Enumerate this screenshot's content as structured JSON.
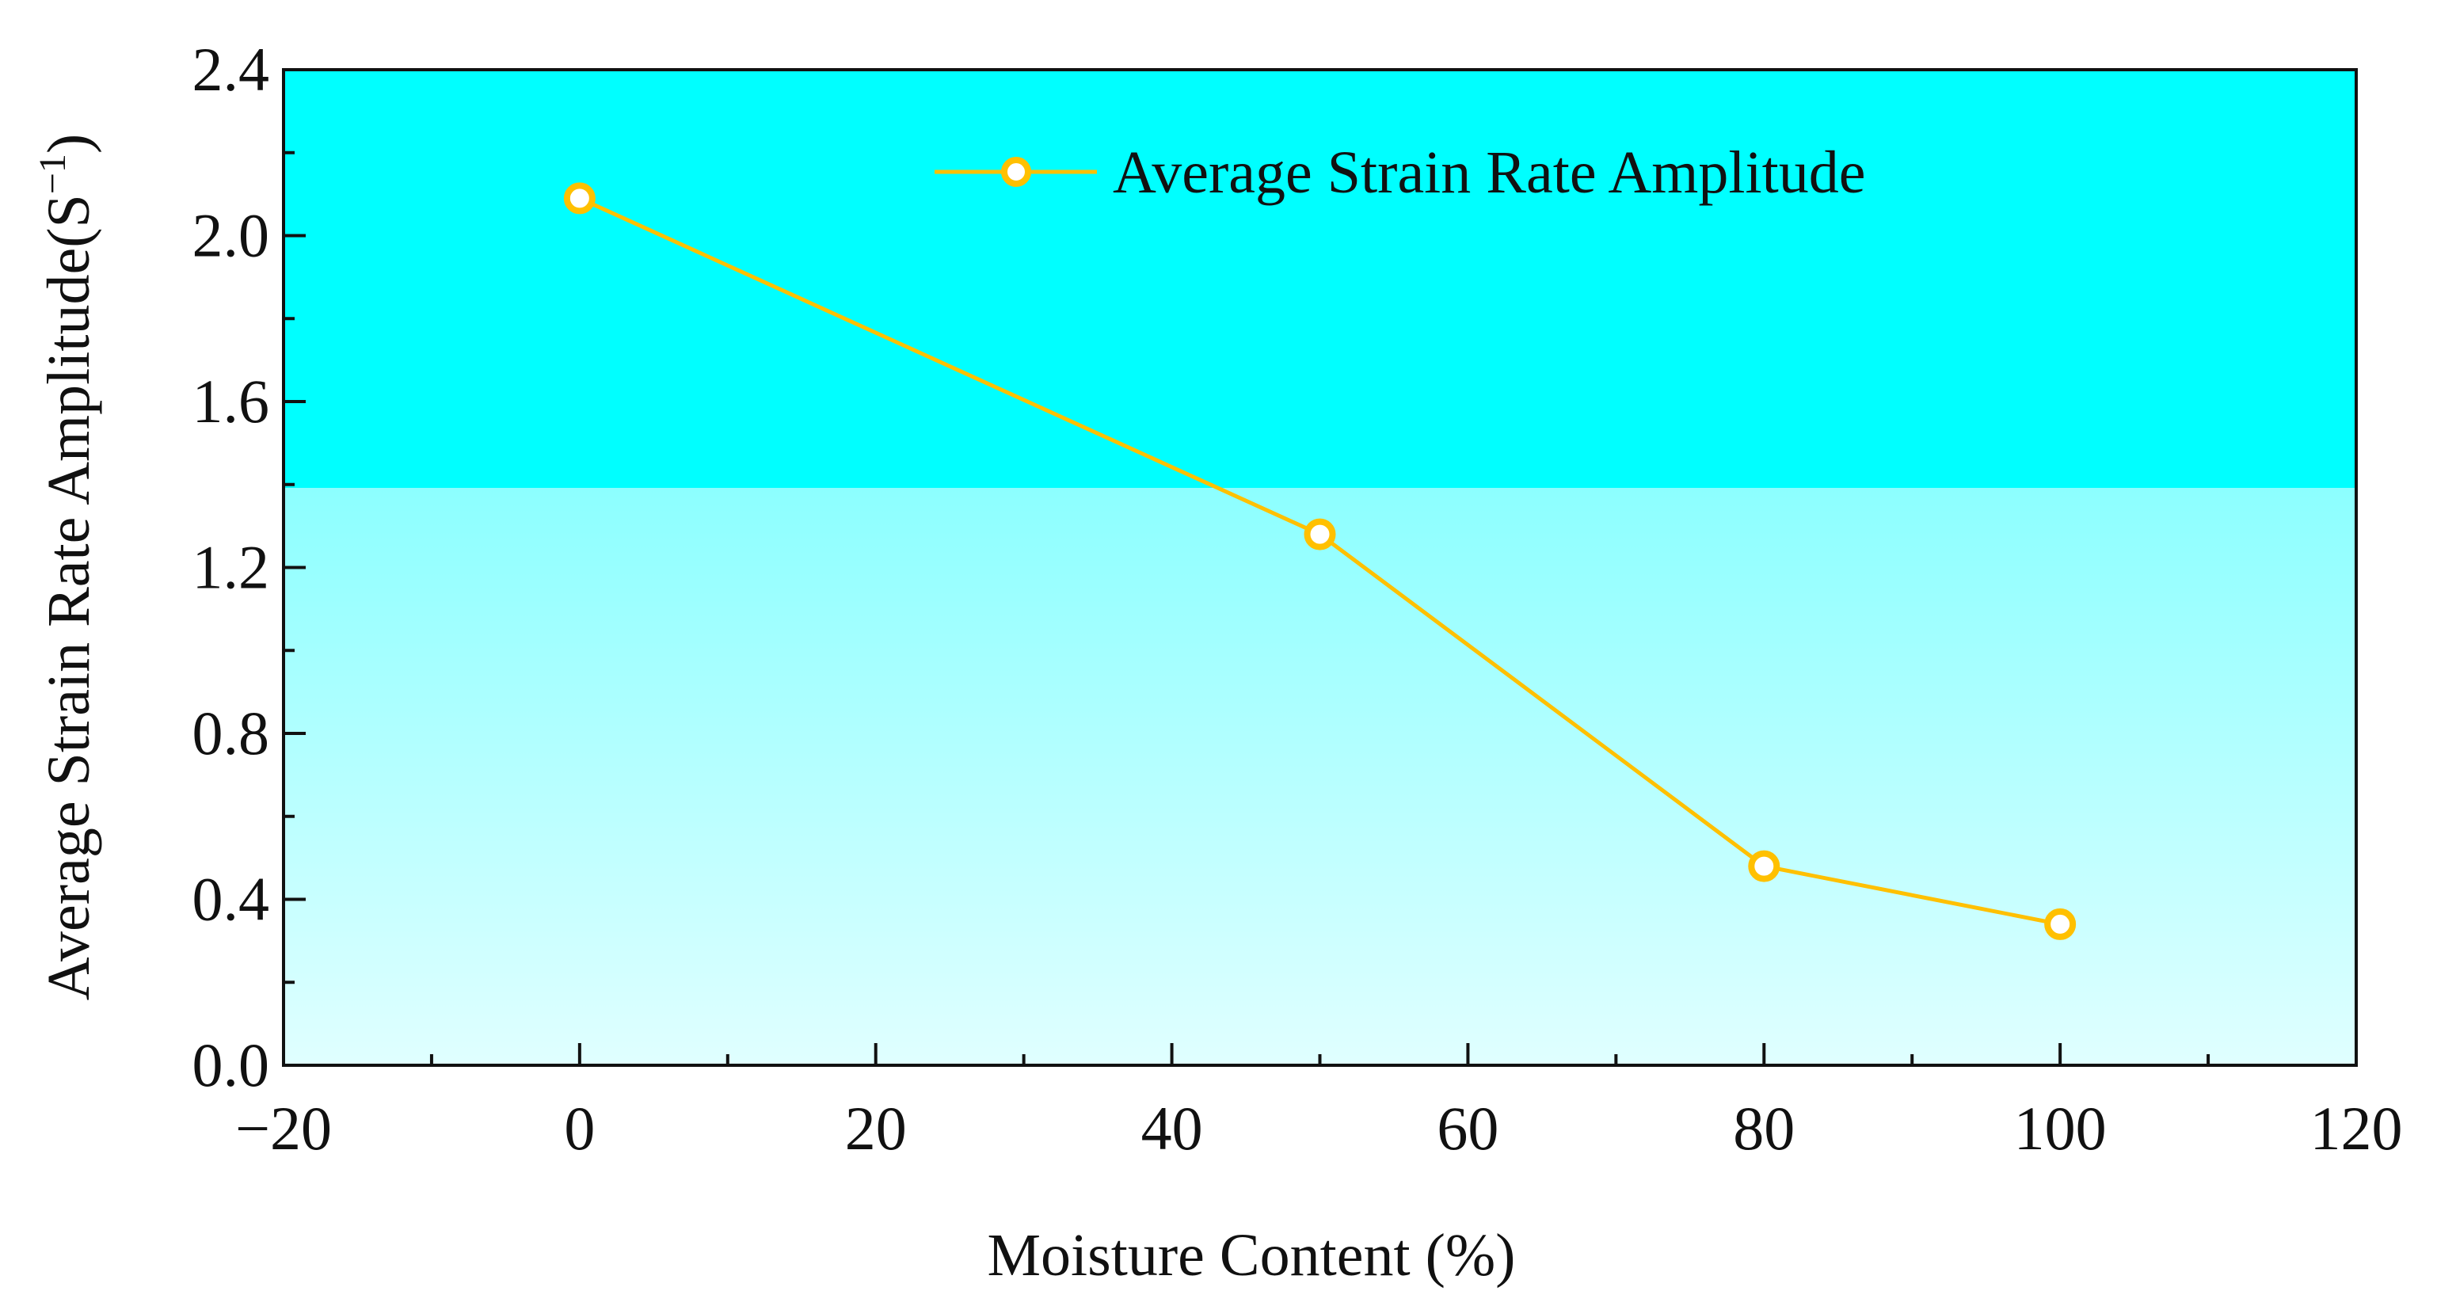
{
  "chart_data": {
    "type": "line",
    "title": "",
    "xlabel": "Moisture Content (%)",
    "ylabel": "Average Strain Rate Amplitude(S",
    "ylabel_sup": "−1",
    "ylabel_close": ")",
    "xlim": [
      -20,
      120
    ],
    "ylim": [
      0.0,
      2.4
    ],
    "xticks": [
      -20,
      0,
      20,
      40,
      60,
      80,
      100,
      120
    ],
    "xtick_labels": [
      "−20",
      "0",
      "20",
      "40",
      "60",
      "80",
      "100",
      "120"
    ],
    "yticks": [
      0.0,
      0.4,
      0.8,
      1.2,
      1.6,
      2.0,
      2.4
    ],
    "ytick_labels": [
      "0.0",
      "0.4",
      "0.8",
      "1.2",
      "1.6",
      "2.0",
      "2.4"
    ],
    "grid": false,
    "legend_position": "top-right",
    "series": [
      {
        "name": "Average Strain Rate Amplitude",
        "x": [
          0,
          50,
          80,
          100
        ],
        "y": [
          2.09,
          1.28,
          0.48,
          0.34
        ],
        "color": "#FFC000",
        "marker": "open-circle"
      }
    ]
  },
  "colors": {
    "plot_bg_top": "#00FFFF",
    "plot_bg_bottom": "#E0FFFF",
    "axis": "#111111"
  }
}
